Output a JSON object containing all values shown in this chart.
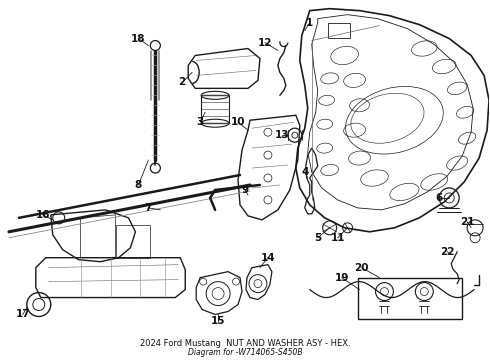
{
  "title": "2024 Ford Mustang  NUT AND WASHER ASY - HEX.",
  "subtitle": "Diagram for -W714065-S450B",
  "bg_color": "#ffffff",
  "line_color": "#1a1a1a",
  "text_color": "#111111",
  "fig_width": 4.9,
  "fig_height": 3.6,
  "dpi": 100
}
